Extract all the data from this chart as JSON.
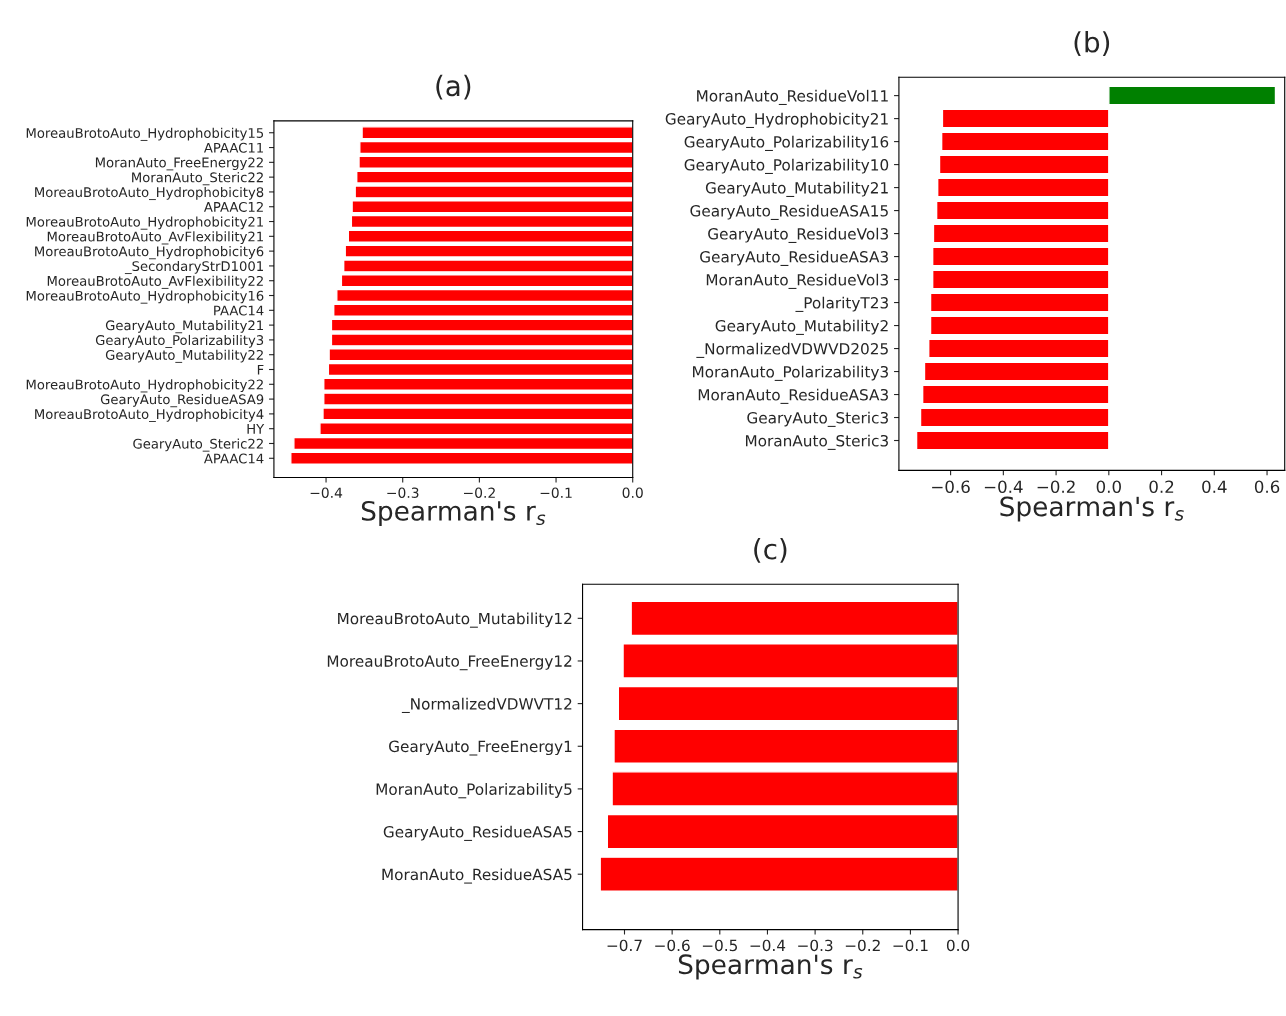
{
  "chart_data": [
    {
      "type": "bar",
      "orientation": "horizontal",
      "title": "(a)",
      "xlabel": "Spearman's r$_{s}$",
      "categories": [
        "MoreauBrotoAuto_Hydrophobicity15",
        "APAAC11",
        "MoranAuto_FreeEnergy22",
        "MoranAuto_Steric22",
        "MoreauBrotoAuto_Hydrophobicity8",
        "APAAC12",
        "MoreauBrotoAuto_Hydrophobicity21",
        "MoreauBrotoAuto_AvFlexibility21",
        "MoreauBrotoAuto_Hydrophobicity6",
        "_SecondaryStrD1001",
        "MoreauBrotoAuto_AvFlexibility22",
        "MoreauBrotoAuto_Hydrophobicity16",
        "PAAC14",
        "GearyAuto_Mutability21",
        "GearyAuto_Polarizability3",
        "GearyAuto_Mutability22",
        "F",
        "MoreauBrotoAuto_Hydrophobicity22",
        "GearyAuto_ResidueASA9",
        "MoreauBrotoAuto_Hydrophobicity4",
        "HY",
        "GearyAuto_Steric22",
        "APAAC14"
      ],
      "values": [
        -0.353,
        -0.356,
        -0.357,
        -0.36,
        -0.362,
        -0.366,
        -0.367,
        -0.371,
        -0.375,
        -0.377,
        -0.38,
        -0.386,
        -0.39,
        -0.393,
        -0.393,
        -0.396,
        -0.397,
        -0.403,
        -0.403,
        -0.404,
        -0.408,
        -0.442,
        -0.446
      ],
      "color": "#ff0000",
      "xlim": [
        -0.468,
        0
      ],
      "xticks": [
        {
          "value": -0.4,
          "label": "−0.4"
        },
        {
          "value": -0.3,
          "label": "−0.3"
        },
        {
          "value": -0.2,
          "label": "−0.2"
        },
        {
          "value": -0.1,
          "label": "−0.1"
        },
        {
          "value": 0,
          "label": "0.0"
        }
      ]
    },
    {
      "type": "bar",
      "orientation": "horizontal",
      "title": "(b)",
      "xlabel": "Spearman's r$_{s}$",
      "categories": [
        "MoranAuto_ResidueVol11",
        "GearyAuto_Hydrophobicity21",
        "GearyAuto_Polarizability16",
        "GearyAuto_Polarizability10",
        "GearyAuto_Mutability21",
        "GearyAuto_ResidueASA15",
        "GearyAuto_ResidueVol3",
        "GearyAuto_ResidueASA3",
        "MoranAuto_ResidueVol3",
        "_PolarityT23",
        "GearyAuto_Mutability2",
        "_NormalizedVDWVD2025",
        "MoranAuto_Polarizability3",
        "MoranAuto_ResidueASA3",
        "GearyAuto_Steric3",
        "MoranAuto_Steric3"
      ],
      "values": [
        0.632,
        -0.631,
        -0.634,
        -0.642,
        -0.649,
        -0.653,
        -0.665,
        -0.668,
        -0.668,
        -0.676,
        -0.676,
        -0.683,
        -0.699,
        -0.706,
        -0.714,
        -0.729
      ],
      "colors": [
        "#008000",
        "#ff0000",
        "#ff0000",
        "#ff0000",
        "#ff0000",
        "#ff0000",
        "#ff0000",
        "#ff0000",
        "#ff0000",
        "#ff0000",
        "#ff0000",
        "#ff0000",
        "#ff0000",
        "#ff0000",
        "#ff0000",
        "#ff0000"
      ],
      "xlim": [
        -0.796,
        0.667
      ],
      "xticks": [
        {
          "value": -0.6,
          "label": "−0.6"
        },
        {
          "value": -0.4,
          "label": "−0.4"
        },
        {
          "value": -0.2,
          "label": "−0.2"
        },
        {
          "value": 0,
          "label": "0.0"
        },
        {
          "value": 0.2,
          "label": "0.2"
        },
        {
          "value": 0.4,
          "label": "0.4"
        },
        {
          "value": 0.6,
          "label": "0.6"
        }
      ]
    },
    {
      "type": "bar",
      "orientation": "horizontal",
      "title": "(c)",
      "xlabel": "Spearman's r$_{s}$",
      "categories": [
        "MoreauBrotoAuto_Mutability12",
        "MoreauBrotoAuto_FreeEnergy12",
        "_NormalizedVDWVT12",
        "GearyAuto_FreeEnergy1",
        "MoranAuto_Polarizability5",
        "GearyAuto_ResidueASA5",
        "MoranAuto_ResidueASA5"
      ],
      "values": [
        -0.686,
        -0.703,
        -0.713,
        -0.722,
        -0.726,
        -0.736,
        -0.751
      ],
      "color": "#ff0000",
      "xlim": [
        -0.788,
        0
      ],
      "xticks": [
        {
          "value": -0.7,
          "label": "−0.7"
        },
        {
          "value": -0.6,
          "label": "−0.6"
        },
        {
          "value": -0.5,
          "label": "−0.5"
        },
        {
          "value": -0.4,
          "label": "−0.4"
        },
        {
          "value": -0.3,
          "label": "−0.3"
        },
        {
          "value": -0.2,
          "label": "−0.2"
        },
        {
          "value": -0.1,
          "label": "−0.1"
        },
        {
          "value": 0,
          "label": "0.0"
        }
      ]
    }
  ]
}
